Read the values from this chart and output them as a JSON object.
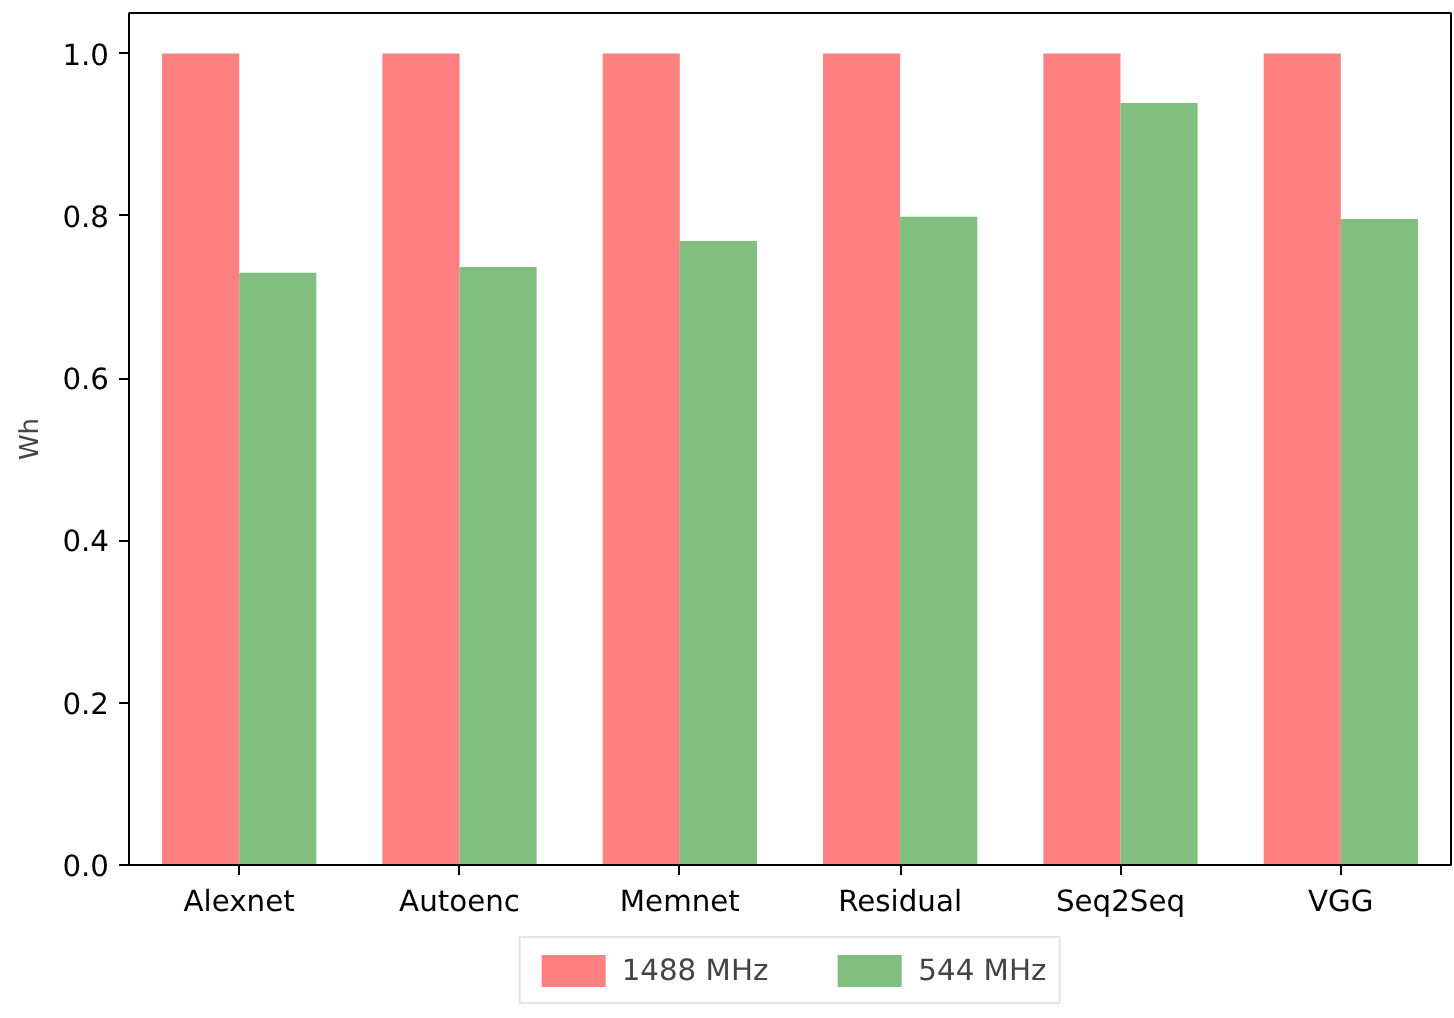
{
  "chart_data": {
    "type": "bar",
    "ylabel": "Wh",
    "categories": [
      "Alexnet",
      "Autoenc",
      "Memnet",
      "Residual",
      "Seq2Seq",
      "VGG"
    ],
    "series": [
      {
        "name": "1488 MHz",
        "color": "#ff8080",
        "values": [
          1.0,
          1.0,
          1.0,
          1.0,
          1.0,
          1.0
        ]
      },
      {
        "name": "544 MHz",
        "color": "#80bf80",
        "values": [
          0.73,
          0.737,
          0.769,
          0.799,
          0.939,
          0.796
        ]
      }
    ],
    "ylim": [
      0,
      1.05
    ],
    "yticks": [
      {
        "value": 0,
        "label": "0.0"
      },
      {
        "value": 0.2,
        "label": "0.2"
      },
      {
        "value": 0.4,
        "label": "0.4"
      },
      {
        "value": 0.6,
        "label": "0.6"
      },
      {
        "value": 0.8,
        "label": "0.8"
      },
      {
        "value": 1.0,
        "label": "1.0"
      }
    ],
    "grid": false,
    "legend": "bottom"
  }
}
